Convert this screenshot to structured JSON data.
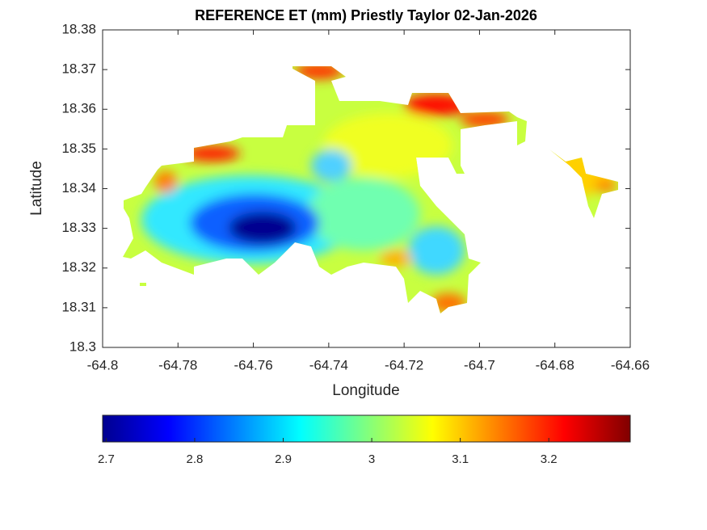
{
  "chart_data": {
    "type": "contour",
    "title": "REFERENCE ET (mm) Priestly Taylor 02-Jan-2026",
    "x_label": "Longitude",
    "y_label": "Latitude",
    "xlim": [
      -64.8,
      -64.66
    ],
    "xticks": [
      -64.8,
      -64.78,
      -64.76,
      -64.74,
      -64.72,
      -64.7,
      -64.68,
      -64.66
    ],
    "ylim": [
      18.3,
      18.38
    ],
    "yticks": [
      18.3,
      18.31,
      18.32,
      18.33,
      18.34,
      18.35,
      18.36,
      18.37,
      18.38
    ],
    "colormap": "jet",
    "clim": [
      2.696,
      3.292
    ],
    "cticks": [
      2.7,
      2.8,
      2.9,
      3,
      3.1,
      3.2
    ]
  }
}
